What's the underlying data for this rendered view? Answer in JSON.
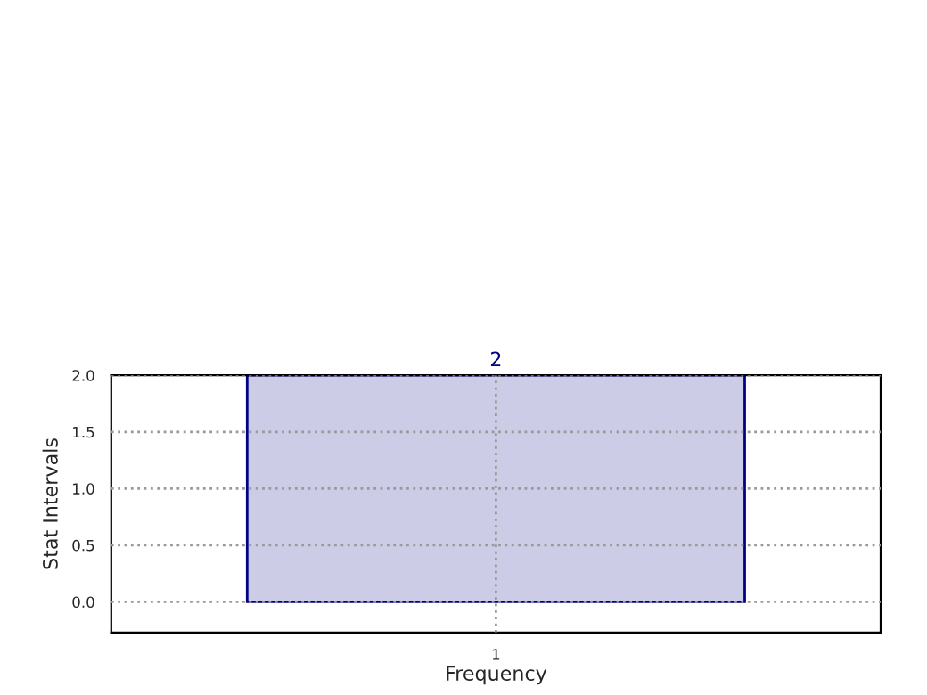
{
  "chart_data": {
    "type": "bar",
    "xlabel": "Frequency",
    "ylabel": "Stat Intervals",
    "categories": [
      "1"
    ],
    "values": [
      2
    ],
    "color": "#cccce6",
    "ylim": [
      -0.27,
      2.0
    ],
    "yticks": [
      {
        "value": 0,
        "label": "0.0"
      },
      {
        "value": 0.5,
        "label": "0.5"
      },
      {
        "value": 1.0,
        "label": "1.0"
      },
      {
        "value": 1.5,
        "label": "1.5"
      },
      {
        "value": 2.0,
        "label": "2.0"
      }
    ],
    "grid": true,
    "data_labels": true
  }
}
